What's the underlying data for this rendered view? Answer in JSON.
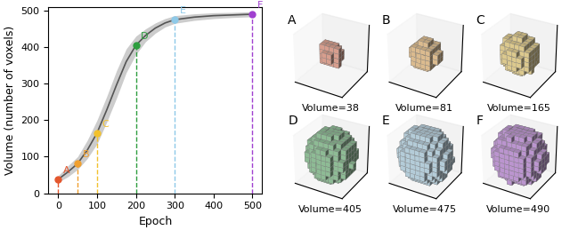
{
  "chart_data": {
    "type": "line",
    "x_label": "Epoch",
    "y_label": "Volume (number of voxels)",
    "xlim": [
      -25,
      525
    ],
    "ylim": [
      0,
      510
    ],
    "xticks": [
      0,
      100,
      200,
      300,
      400,
      500
    ],
    "yticks": [
      0,
      100,
      200,
      300,
      400,
      500
    ],
    "grid": false,
    "x": [
      0,
      25,
      50,
      75,
      100,
      125,
      150,
      175,
      200,
      225,
      250,
      275,
      300,
      350,
      400,
      450,
      500
    ],
    "values": [
      38,
      58,
      81,
      118,
      165,
      228,
      296,
      360,
      405,
      432,
      452,
      466,
      475,
      482,
      486,
      488,
      490
    ],
    "band_low": [
      30,
      45,
      65,
      95,
      135,
      195,
      260,
      330,
      380,
      415,
      438,
      455,
      465,
      473,
      478,
      481,
      483
    ],
    "band_high": [
      48,
      75,
      100,
      145,
      200,
      265,
      335,
      395,
      430,
      450,
      466,
      478,
      486,
      491,
      494,
      495,
      497
    ],
    "color": "#555555",
    "band_color": "#cccccc",
    "points": [
      {
        "label": "A",
        "x": 0,
        "value": 38,
        "volume_label": "Volume=38",
        "color": "#e4572e"
      },
      {
        "label": "B",
        "x": 50,
        "value": 81,
        "volume_label": "Volume=81",
        "color": "#f0a030"
      },
      {
        "label": "C",
        "x": 100,
        "value": 165,
        "volume_label": "Volume=165",
        "color": "#f2c12e"
      },
      {
        "label": "D",
        "x": 200,
        "value": 405,
        "volume_label": "Volume=405",
        "color": "#2e9e3f"
      },
      {
        "label": "E",
        "x": 300,
        "value": 475,
        "volume_label": "Volume=475",
        "color": "#8ec9e8"
      },
      {
        "label": "F",
        "x": 500,
        "value": 490,
        "volume_label": "Volume=490",
        "color": "#a040d0"
      }
    ]
  }
}
